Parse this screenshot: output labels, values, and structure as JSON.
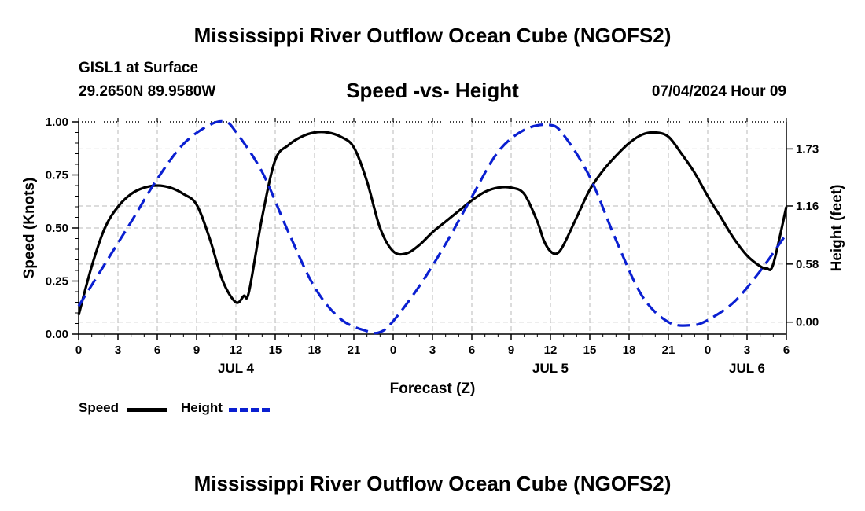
{
  "header": {
    "title": "Mississippi River Outflow Ocean Cube (NGOFS2)",
    "station": "GISL1 at Surface",
    "coordinates": "29.2650N  89.9580W",
    "subtitle": "Speed -vs- Height",
    "datetime": "07/04/2024 Hour 09"
  },
  "footer": {
    "title": "Mississippi River Outflow Ocean Cube (NGOFS2)"
  },
  "legend": {
    "speed_label": "Speed",
    "height_label": "Height"
  },
  "colors": {
    "speed": "#000000",
    "height": "#0a1fd1",
    "grid": "#b8b8b8"
  },
  "chart_data": {
    "type": "line",
    "title": "Speed -vs- Height",
    "xlabel": "Forecast (Z)",
    "ylabel": "Speed (Knots)",
    "y2label": "Height (feet)",
    "xlim": [
      0,
      54
    ],
    "ylim": [
      0,
      1.0
    ],
    "y2lim": [
      -0.12,
      2.0
    ],
    "x_ticks": [
      0,
      3,
      6,
      9,
      12,
      15,
      18,
      21,
      24,
      27,
      30,
      33,
      36,
      39,
      42,
      45,
      48,
      51,
      54
    ],
    "x_tick_labels": [
      "0",
      "3",
      "6",
      "9",
      "12",
      "15",
      "18",
      "21",
      "0",
      "3",
      "6",
      "9",
      "12",
      "15",
      "18",
      "21",
      "0",
      "3",
      "6"
    ],
    "date_labels": [
      {
        "x": 12,
        "label": "JUL 4"
      },
      {
        "x": 36,
        "label": "JUL 5"
      },
      {
        "x": 51,
        "label": "JUL 6"
      }
    ],
    "y_ticks": [
      0,
      0.25,
      0.5,
      0.75,
      1.0
    ],
    "y_tick_labels": [
      "0.00",
      "0.25",
      "0.50",
      "0.75",
      "1.00"
    ],
    "y2_ticks": [
      0,
      0.58,
      1.16,
      1.73
    ],
    "y2_tick_labels": [
      "0.00",
      "0.58",
      "1.16",
      "1.73"
    ],
    "grid": true,
    "series": [
      {
        "name": "Speed",
        "axis": "left",
        "style": "solid",
        "x": [
          0,
          1,
          2,
          3,
          4,
          5,
          6,
          7,
          8,
          9,
          10,
          11,
          12,
          12.6,
          13,
          14,
          15,
          16,
          17,
          18,
          19,
          20,
          21,
          22,
          23,
          24,
          25,
          26,
          27,
          28,
          29,
          30,
          31,
          32,
          33,
          34,
          35,
          35.5,
          36,
          36.5,
          37,
          38,
          39,
          40,
          41,
          42,
          43,
          44,
          45,
          46,
          47,
          48,
          49,
          50,
          51,
          52,
          52.5,
          53,
          54
        ],
        "values": [
          0.09,
          0.32,
          0.5,
          0.6,
          0.66,
          0.69,
          0.7,
          0.69,
          0.66,
          0.61,
          0.45,
          0.25,
          0.15,
          0.18,
          0.2,
          0.55,
          0.82,
          0.89,
          0.93,
          0.95,
          0.95,
          0.93,
          0.88,
          0.72,
          0.5,
          0.39,
          0.38,
          0.42,
          0.48,
          0.53,
          0.58,
          0.63,
          0.67,
          0.69,
          0.69,
          0.66,
          0.53,
          0.44,
          0.39,
          0.38,
          0.42,
          0.55,
          0.68,
          0.77,
          0.84,
          0.9,
          0.94,
          0.95,
          0.93,
          0.85,
          0.76,
          0.65,
          0.55,
          0.45,
          0.37,
          0.32,
          0.31,
          0.33,
          0.6
        ]
      },
      {
        "name": "Height",
        "axis": "right",
        "style": "dashed",
        "x": [
          0,
          2,
          4,
          6,
          8,
          10,
          11.2,
          12,
          14,
          16,
          18,
          20,
          22,
          23,
          24,
          26,
          28,
          30,
          32,
          34,
          35.9,
          37,
          39,
          41,
          43,
          45,
          46.8,
          48,
          50,
          52,
          54
        ],
        "values": [
          0.16,
          0.58,
          1.0,
          1.43,
          1.78,
          1.97,
          2.0,
          1.9,
          1.5,
          0.9,
          0.35,
          0.03,
          -0.09,
          -0.1,
          0.01,
          0.36,
          0.78,
          1.25,
          1.7,
          1.92,
          1.97,
          1.87,
          1.45,
          0.82,
          0.26,
          0.0,
          -0.03,
          0.02,
          0.2,
          0.51,
          0.88
        ]
      }
    ]
  }
}
